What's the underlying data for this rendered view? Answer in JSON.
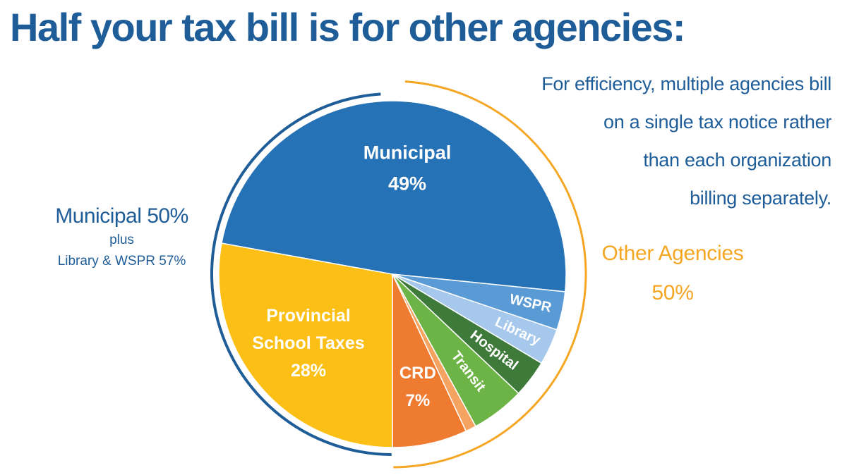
{
  "title": "Half your tax bill is for other agencies:",
  "note_lines": [
    "For efficiency, multiple agencies bill",
    "on a single tax notice rather",
    "than each organization",
    "billing separately."
  ],
  "left_callout": {
    "line1": "Municipal 50%",
    "line2": "plus",
    "line3": "Library & WSPR 57%"
  },
  "right_callout": {
    "line1": "Other Agencies",
    "line2": "50%"
  },
  "colors": {
    "title": "#1f5d99",
    "other_agencies": "#f5a623"
  },
  "chart_data": {
    "type": "pie",
    "title": "",
    "slices": [
      {
        "label": "Provincial School Taxes",
        "value": 28,
        "value_label": "28%",
        "color": "#fbbf15",
        "label_lines": [
          "Provincial",
          "School Taxes",
          "28%"
        ]
      },
      {
        "label": "Municipal",
        "value": 49,
        "value_label": "49%",
        "color": "#2672b7",
        "label_lines": [
          "Municipal",
          "49%"
        ]
      },
      {
        "label": "WSPR",
        "value": 3.6,
        "color": "#5b9bd5",
        "label_lines": [
          "WSPR"
        ]
      },
      {
        "label": "Library",
        "value": 3.4,
        "color": "#a6c8ec",
        "label_lines": [
          "Library"
        ]
      },
      {
        "label": "Hospital",
        "value": 3.5,
        "color": "#3e7b3b",
        "label_lines": [
          "Hospital"
        ]
      },
      {
        "label": "Transit",
        "value": 5,
        "color": "#6db446",
        "label_lines": [
          "Transit"
        ]
      },
      {
        "label": "",
        "value": 1,
        "color": "#f4a460",
        "label_lines": []
      },
      {
        "label": "CRD",
        "value": 7,
        "value_label": "7%",
        "color": "#ee7b30",
        "label_lines": [
          "CRD",
          "7%"
        ]
      }
    ],
    "arcs": [
      {
        "name": "Municipal",
        "value": 50,
        "color": "#1f5d99"
      },
      {
        "name": "Other Agencies",
        "value": 50,
        "color": "#f5a623"
      }
    ]
  }
}
